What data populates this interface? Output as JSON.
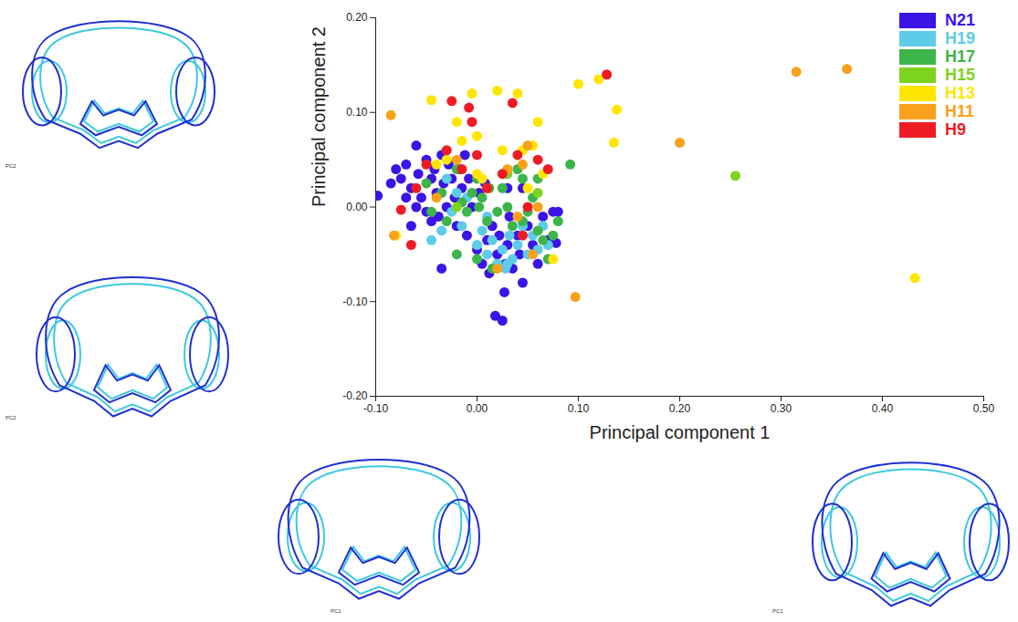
{
  "chart_data": {
    "type": "scatter",
    "x_label": "Principal component 1",
    "y_label": "Principal component 2",
    "annotations": [
      "PC2",
      "PC2",
      "PC1",
      "PC1"
    ],
    "xlim": [
      -0.1,
      0.5
    ],
    "ylim": [
      -0.2,
      0.2
    ],
    "xticks": [
      {
        "value": -0.1,
        "label": "-0.10"
      },
      {
        "value": 0,
        "label": "0.00"
      },
      {
        "value": 0.1,
        "label": "0.10"
      },
      {
        "value": 0.2,
        "label": "0.20"
      },
      {
        "value": 0.3,
        "label": "0.30"
      },
      {
        "value": 0.4,
        "label": "0.40"
      },
      {
        "value": 0.5,
        "label": "0.50"
      }
    ],
    "yticks": [
      {
        "value": -0.2,
        "label": "-0.20"
      },
      {
        "value": -0.1,
        "label": "-0.10"
      },
      {
        "value": 0,
        "label": "0.00"
      },
      {
        "value": 0.1,
        "label": "0.10"
      },
      {
        "value": 0.2,
        "label": "0.20"
      }
    ],
    "legend": "top-right",
    "marker": "circle",
    "series": [
      {
        "name": "N21",
        "color": "#3b14e6",
        "values": [
          [
            -0.098,
            0.012
          ],
          [
            -0.085,
            0.025
          ],
          [
            -0.08,
            0.04
          ],
          [
            -0.075,
            0.03
          ],
          [
            -0.07,
            0.045
          ],
          [
            -0.065,
            0.02
          ],
          [
            -0.06,
            0.065
          ],
          [
            -0.058,
            0.035
          ],
          [
            -0.055,
            0.01
          ],
          [
            -0.05,
            0.05
          ],
          [
            -0.05,
            -0.005
          ],
          [
            -0.045,
            0.03
          ],
          [
            -0.042,
            0.04
          ],
          [
            -0.04,
            0.015
          ],
          [
            -0.038,
            -0.01
          ],
          [
            -0.035,
            0.055
          ],
          [
            -0.033,
            0.025
          ],
          [
            -0.03,
            0.0
          ],
          [
            -0.028,
            0.045
          ],
          [
            -0.025,
            0.03
          ],
          [
            -0.022,
            0.01
          ],
          [
            -0.02,
            -0.02
          ],
          [
            -0.018,
            0.04
          ],
          [
            -0.015,
            0.02
          ],
          [
            -0.012,
            0.055
          ],
          [
            -0.01,
            -0.03
          ],
          [
            -0.008,
            0.03
          ],
          [
            -0.005,
            0.0
          ],
          [
            0.0,
            -0.045
          ],
          [
            0.002,
            0.015
          ],
          [
            0.005,
            -0.06
          ],
          [
            0.008,
            0.025
          ],
          [
            0.01,
            -0.035
          ],
          [
            0.012,
            -0.07
          ],
          [
            0.015,
            -0.02
          ],
          [
            0.018,
            -0.115
          ],
          [
            0.02,
            -0.05
          ],
          [
            0.022,
            -0.03
          ],
          [
            0.025,
            -0.12
          ],
          [
            0.027,
            -0.09
          ],
          [
            0.028,
            -0.06
          ],
          [
            0.03,
            -0.04
          ],
          [
            0.032,
            -0.01
          ],
          [
            0.035,
            -0.065
          ],
          [
            0.04,
            -0.03
          ],
          [
            0.042,
            -0.05
          ],
          [
            0.045,
            -0.08
          ],
          [
            0.05,
            -0.02
          ],
          [
            0.055,
            -0.04
          ],
          [
            0.06,
            -0.06
          ],
          [
            0.065,
            -0.01
          ],
          [
            0.07,
            -0.035
          ],
          [
            0.075,
            -0.005
          ],
          [
            0.078,
            -0.038
          ],
          [
            0.08,
            -0.005
          ],
          [
            -0.065,
            -0.02
          ],
          [
            -0.06,
            0.0
          ],
          [
            -0.035,
            -0.065
          ],
          [
            -0.045,
            -0.015
          ],
          [
            0.03,
            0.02
          ],
          [
            0.045,
            0.02
          ],
          [
            -0.07,
            0.01
          ]
        ]
      },
      {
        "name": "H19",
        "color": "#5ecbe9",
        "values": [
          [
            -0.045,
            -0.035
          ],
          [
            -0.035,
            -0.025
          ],
          [
            -0.03,
            0.03
          ],
          [
            -0.025,
            -0.005
          ],
          [
            -0.02,
            0.015
          ],
          [
            -0.015,
            -0.02
          ],
          [
            0.0,
            -0.04
          ],
          [
            0.005,
            -0.025
          ],
          [
            0.01,
            -0.05
          ],
          [
            0.015,
            -0.035
          ],
          [
            0.02,
            -0.06
          ],
          [
            0.025,
            -0.045
          ],
          [
            0.028,
            -0.065
          ],
          [
            0.032,
            -0.03
          ],
          [
            0.035,
            -0.055
          ],
          [
            0.04,
            -0.04
          ],
          [
            0.045,
            -0.02
          ],
          [
            0.05,
            -0.05
          ],
          [
            0.055,
            -0.03
          ],
          [
            0.06,
            -0.045
          ],
          [
            0.065,
            -0.02
          ],
          [
            0.07,
            -0.04
          ],
          [
            -0.01,
            0.01
          ],
          [
            0.01,
            -0.01
          ],
          [
            0.03,
            -0.06
          ]
        ]
      },
      {
        "name": "H17",
        "color": "#3db54a",
        "values": [
          [
            -0.05,
            0.025
          ],
          [
            -0.045,
            -0.005
          ],
          [
            -0.035,
            0.015
          ],
          [
            -0.03,
            -0.015
          ],
          [
            -0.02,
            0.04
          ],
          [
            -0.015,
            0.005
          ],
          [
            -0.01,
            -0.005
          ],
          [
            -0.005,
            0.015
          ],
          [
            0.0,
            0.03
          ],
          [
            0.002,
            0.0
          ],
          [
            0.005,
            0.01
          ],
          [
            0.01,
            -0.015
          ],
          [
            0.012,
            0.02
          ],
          [
            0.015,
            -0.065
          ],
          [
            0.02,
            -0.005
          ],
          [
            0.025,
            0.02
          ],
          [
            0.03,
            0.0
          ],
          [
            0.035,
            -0.02
          ],
          [
            0.04,
            0.04
          ],
          [
            0.045,
            -0.015
          ],
          [
            0.05,
            -0.005
          ],
          [
            0.055,
            0.01
          ],
          [
            0.06,
            -0.025
          ],
          [
            0.065,
            -0.035
          ],
          [
            0.07,
            -0.055
          ],
          [
            0.075,
            -0.03
          ],
          [
            0.08,
            -0.015
          ],
          [
            0.092,
            0.045
          ],
          [
            0.06,
            0.03
          ],
          [
            -0.02,
            -0.05
          ],
          [
            0.0,
            -0.055
          ],
          [
            0.045,
            0.03
          ]
        ]
      },
      {
        "name": "H15",
        "color": "#7ed321",
        "values": [
          [
            0.255,
            0.033
          ],
          [
            0.06,
            0.015
          ],
          [
            0.03,
            0.035
          ],
          [
            -0.02,
            0.0
          ]
        ]
      },
      {
        "name": "H13",
        "color": "#ffe600",
        "values": [
          [
            -0.08,
            -0.03
          ],
          [
            -0.045,
            0.113
          ],
          [
            -0.04,
            0.045
          ],
          [
            -0.02,
            0.09
          ],
          [
            -0.015,
            0.07
          ],
          [
            -0.005,
            0.12
          ],
          [
            0.0,
            0.075
          ],
          [
            0.005,
            0.03
          ],
          [
            0.02,
            0.123
          ],
          [
            0.025,
            0.06
          ],
          [
            0.04,
            0.12
          ],
          [
            0.045,
            0.06
          ],
          [
            0.05,
            0.02
          ],
          [
            0.055,
            0.065
          ],
          [
            0.06,
            0.09
          ],
          [
            0.065,
            0.035
          ],
          [
            0.075,
            -0.055
          ],
          [
            0.1,
            0.13
          ],
          [
            0.12,
            0.135
          ],
          [
            0.138,
            0.103
          ],
          [
            0.135,
            0.068
          ],
          [
            0.432,
            -0.075
          ],
          [
            0.0,
            0.035
          ],
          [
            -0.03,
            0.05
          ]
        ]
      },
      {
        "name": "H11",
        "color": "#f9a11b",
        "values": [
          [
            -0.085,
            0.097
          ],
          [
            -0.082,
            -0.03
          ],
          [
            -0.04,
            0.01
          ],
          [
            -0.02,
            0.05
          ],
          [
            0.01,
            0.02
          ],
          [
            0.02,
            -0.065
          ],
          [
            0.03,
            0.04
          ],
          [
            0.045,
            0.045
          ],
          [
            0.05,
            0.065
          ],
          [
            0.055,
            -0.05
          ],
          [
            0.06,
            0.0
          ],
          [
            0.097,
            -0.095
          ],
          [
            0.2,
            0.068
          ],
          [
            0.315,
            0.143
          ],
          [
            0.365,
            0.146
          ],
          [
            0.04,
            -0.01
          ]
        ]
      },
      {
        "name": "H9",
        "color": "#ed1c24",
        "values": [
          [
            -0.075,
            -0.003
          ],
          [
            -0.065,
            -0.04
          ],
          [
            -0.05,
            0.045
          ],
          [
            -0.03,
            0.06
          ],
          [
            -0.025,
            0.112
          ],
          [
            -0.015,
            0.04
          ],
          [
            -0.008,
            0.105
          ],
          [
            -0.005,
            0.09
          ],
          [
            0.0,
            0.055
          ],
          [
            0.01,
            0.02
          ],
          [
            0.025,
            0.035
          ],
          [
            0.035,
            0.11
          ],
          [
            0.04,
            0.055
          ],
          [
            0.05,
            0.0
          ],
          [
            0.06,
            0.05
          ],
          [
            0.07,
            0.04
          ],
          [
            0.128,
            0.14
          ],
          [
            0.045,
            -0.03
          ],
          [
            -0.06,
            0.02
          ]
        ]
      }
    ]
  }
}
